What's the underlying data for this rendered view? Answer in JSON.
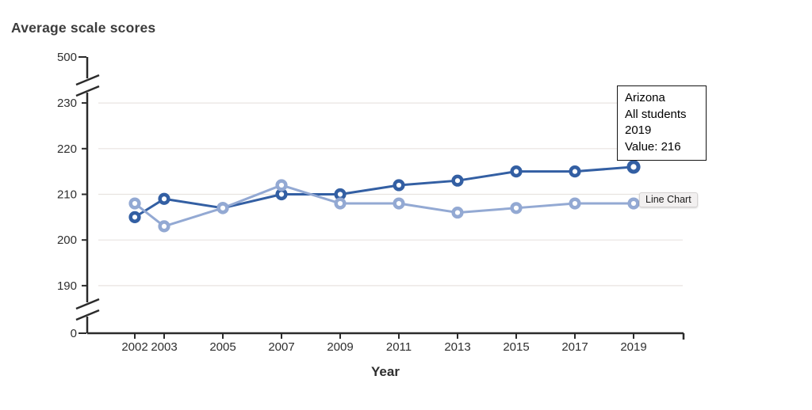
{
  "chart_data": {
    "type": "line",
    "title": "Average scale scores",
    "xlabel": "Year",
    "ylabel": "",
    "x": [
      2002,
      2003,
      2005,
      2007,
      2009,
      2011,
      2013,
      2015,
      2017,
      2019
    ],
    "series": [
      {
        "id": "arizona",
        "name": "Arizona",
        "color": "#335fa3",
        "values": [
          205,
          209,
          207,
          210,
          210,
          212,
          213,
          215,
          215,
          216
        ]
      },
      {
        "id": "comparison",
        "name": "",
        "color": "#93a9d3",
        "values": [
          208,
          203,
          207,
          212,
          208,
          208,
          206,
          207,
          208,
          208
        ]
      }
    ],
    "y_ticks": [
      500,
      230,
      220,
      210,
      200,
      190,
      0
    ],
    "gridline_values": [
      230,
      220,
      210,
      200,
      190
    ],
    "y_axis_broken": true,
    "visible_value_window": [
      190,
      230
    ],
    "legend": "none",
    "grid": "horizontal",
    "hovered_point": {
      "series": "arizona",
      "year": 2019,
      "value": 216
    }
  },
  "tooltip": {
    "lines": [
      "Arizona",
      "All students",
      "2019",
      "Value: 216"
    ]
  },
  "hover_label": "Line Chart",
  "colors": {
    "axis": "#2b2b2b",
    "grid": "#e8e4e0",
    "tick_text": "#2f2f2f",
    "background": "#ffffff",
    "series_dark": "#335fa3",
    "series_light": "#93a9d3"
  }
}
